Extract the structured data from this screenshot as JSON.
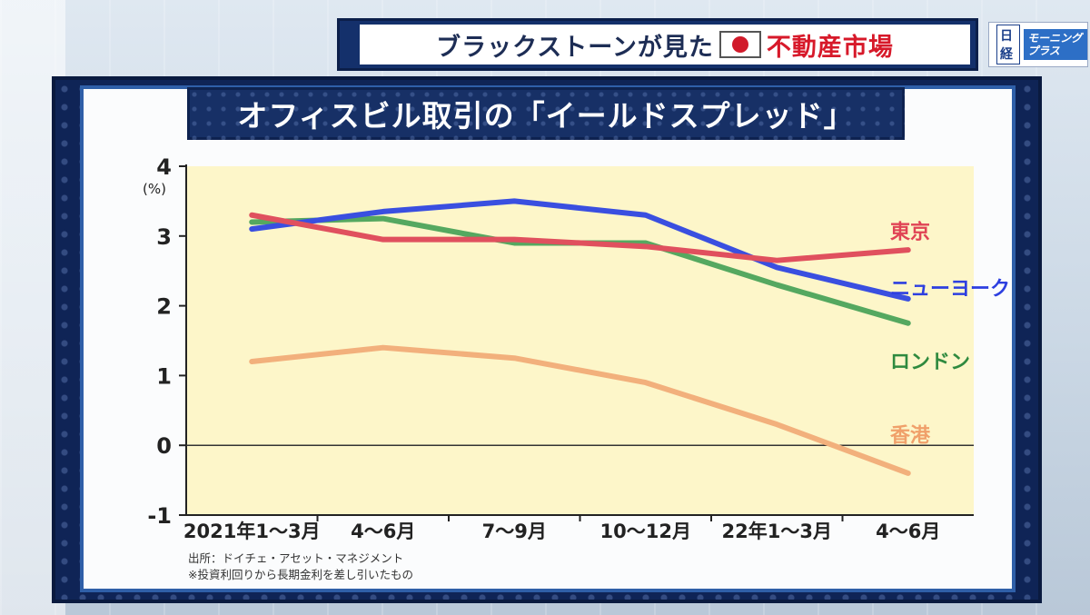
{
  "banner": {
    "left_text": "ブラックストーンが見た",
    "flag_icon": "japan-flag-icon",
    "right_text": "不動産市場"
  },
  "logo": {
    "nikkei": "日経",
    "program": "モーニングプラス"
  },
  "chart_data": {
    "type": "line",
    "title": "オフィスビル取引の「イールドスプレッド」",
    "ylabel": "(%)",
    "ylim": [
      -1,
      4
    ],
    "yticks": [
      "4",
      "3",
      "2",
      "1",
      "0",
      "-1"
    ],
    "categories": [
      "2021年1～3月",
      "4～6月",
      "7～9月",
      "10～12月",
      "22年1～3月",
      "4～6月"
    ],
    "background": "#fdf6c9",
    "series": [
      {
        "name": "東京",
        "color": "#e0505e",
        "values": [
          3.3,
          2.95,
          2.95,
          2.85,
          2.65,
          2.8
        ]
      },
      {
        "name": "ニューヨーク",
        "color": "#3a4fe0",
        "values": [
          3.1,
          3.35,
          3.5,
          3.3,
          2.55,
          2.1
        ]
      },
      {
        "name": "ロンドン",
        "color": "#55a860",
        "values": [
          3.2,
          3.25,
          2.9,
          2.9,
          2.3,
          1.75
        ]
      },
      {
        "name": "香港",
        "color": "#f2b07c",
        "values": [
          1.2,
          1.4,
          1.25,
          0.9,
          0.3,
          -0.4
        ]
      }
    ]
  },
  "source": {
    "line1": "出所：ドイチェ・アセット・マネジメント",
    "line2": "※投資利回りから長期金利を差し引いたもの"
  }
}
